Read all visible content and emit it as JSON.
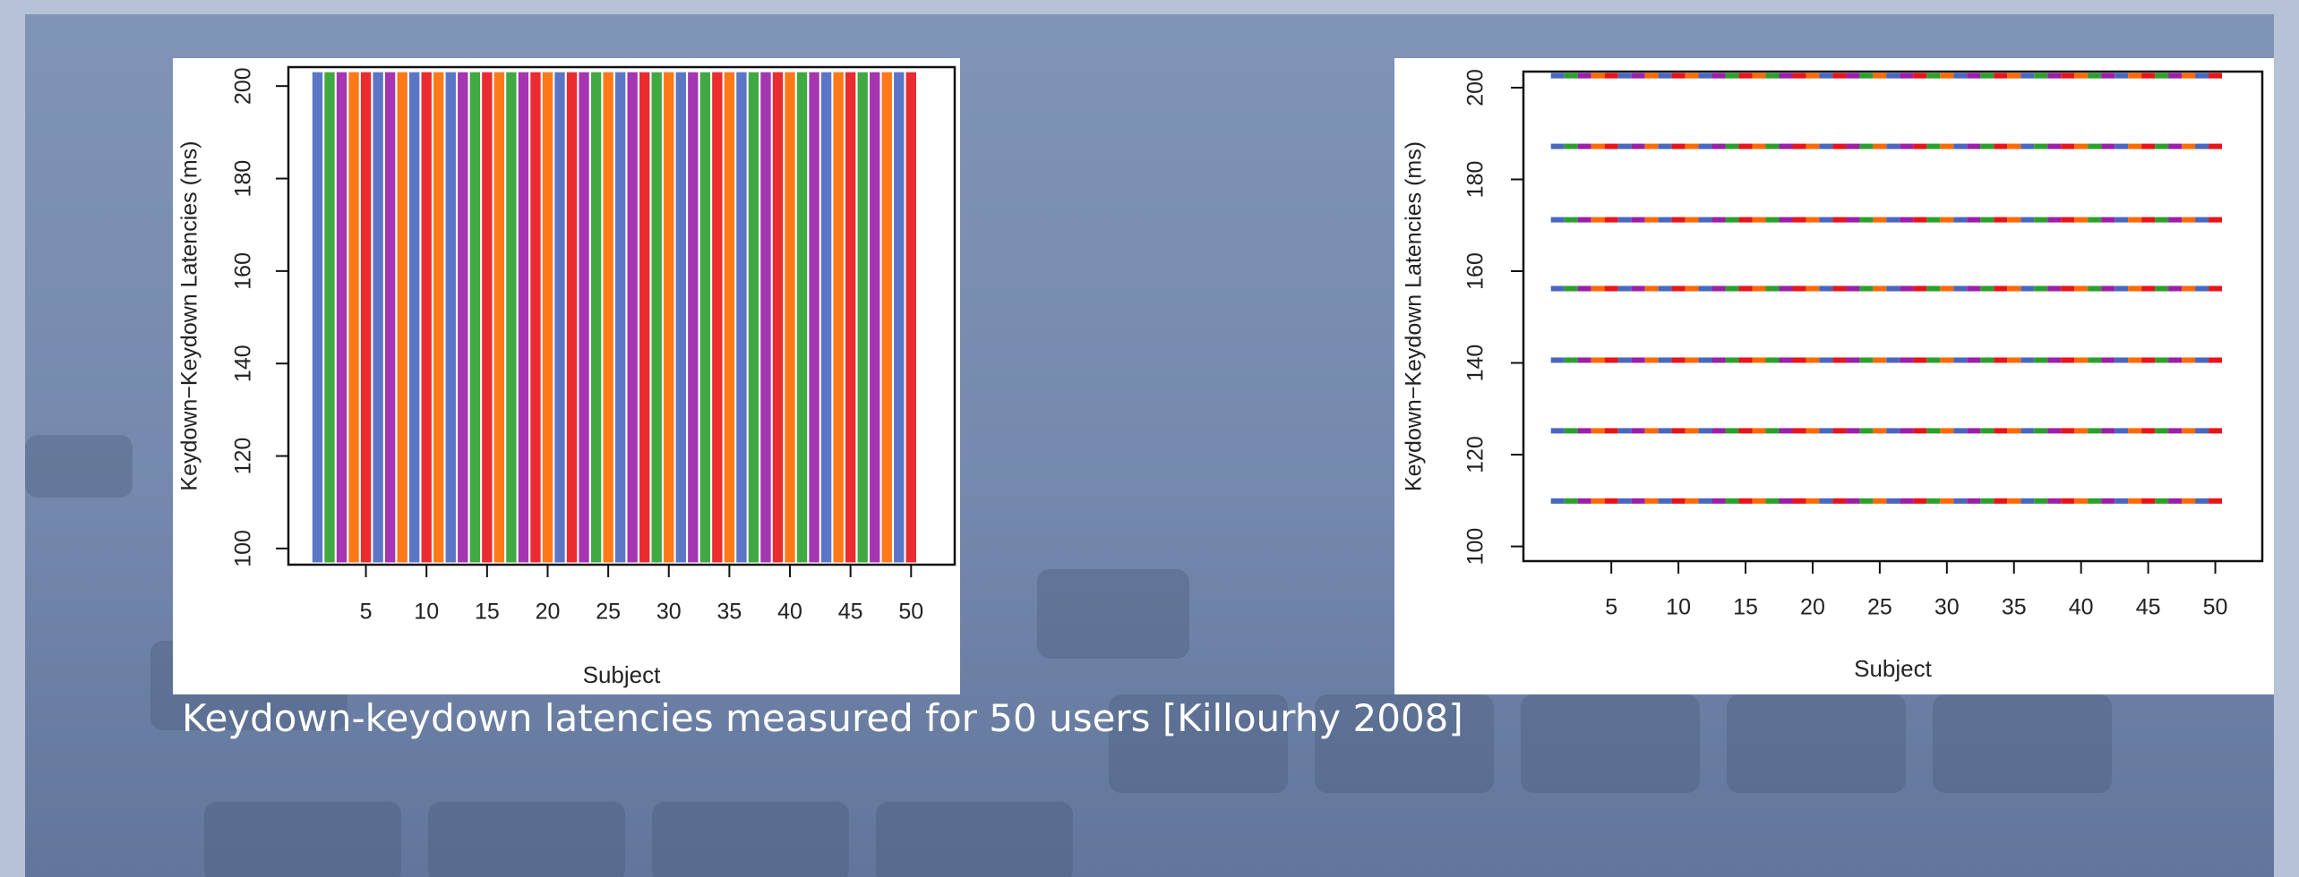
{
  "caption": "Keydown-keydown latencies measured for 50 users [Killourhy 2008]",
  "chart_data": [
    {
      "type": "strip",
      "y_label": "Keydown−Keydown Latencies (ms)",
      "x_label": "Subject",
      "x": [
        1,
        2,
        3,
        4,
        5,
        6,
        7,
        8,
        9,
        10,
        11,
        12,
        13,
        14,
        15,
        16,
        17,
        18,
        19,
        20,
        21,
        22,
        23,
        24,
        25,
        26,
        27,
        28,
        29,
        30,
        31,
        32,
        33,
        34,
        35,
        36,
        37,
        38,
        39,
        40,
        41,
        42,
        43,
        44,
        45,
        46,
        47,
        48,
        49,
        50
      ],
      "lows": [
        97,
        97,
        97,
        97,
        97,
        97,
        97,
        97,
        97,
        97,
        97,
        97,
        97,
        97,
        97,
        97,
        97,
        97,
        97,
        97,
        97,
        97,
        97,
        97,
        97,
        97,
        97,
        97,
        97,
        97,
        97,
        97,
        97,
        97,
        97,
        97,
        97,
        97,
        97,
        97,
        97,
        97,
        97,
        97,
        97,
        97,
        97,
        97,
        97,
        97
      ],
      "highs": [
        203,
        203,
        203,
        203,
        203,
        203,
        203,
        203,
        203,
        203,
        203,
        203,
        203,
        203,
        203,
        203,
        203,
        203,
        203,
        203,
        203,
        203,
        203,
        203,
        203,
        203,
        203,
        203,
        203,
        203,
        203,
        203,
        203,
        203,
        203,
        203,
        203,
        203,
        203,
        203,
        203,
        203,
        203,
        203,
        203,
        203,
        203,
        203,
        203,
        203
      ],
      "colors": [
        "#4a67c0",
        "#2ca02c",
        "#9b1fa8",
        "#ff6a00",
        "#e8141a",
        "#4a67c0",
        "#9b1fa8",
        "#ff6a00",
        "#4a67c0",
        "#e8141a",
        "#ff6a00",
        "#4a67c0",
        "#9b1fa8",
        "#2ca02c",
        "#e8141a",
        "#ff6a00",
        "#2ca02c",
        "#9b1fa8",
        "#e8141a",
        "#ff6a00",
        "#4a67c0",
        "#e8141a",
        "#9b1fa8",
        "#2ca02c",
        "#ff6a00",
        "#4a67c0",
        "#9b1fa8",
        "#e8141a",
        "#2ca02c",
        "#ff6a00",
        "#4a67c0",
        "#9b1fa8",
        "#2ca02c",
        "#e8141a",
        "#ff6a00",
        "#4a67c0",
        "#2ca02c",
        "#9b1fa8",
        "#e8141a",
        "#ff6a00",
        "#2ca02c",
        "#9b1fa8",
        "#4a67c0",
        "#ff6a00",
        "#e8141a",
        "#2ca02c",
        "#9b1fa8",
        "#ff6a00",
        "#4a67c0",
        "#e8141a"
      ],
      "xlim": [
        -1.4,
        53.6
      ],
      "ylim": [
        96.5,
        204.1
      ],
      "xticks": [
        5,
        10,
        15,
        20,
        25,
        30,
        35,
        40,
        45,
        50
      ],
      "yticks": [
        100,
        120,
        140,
        160,
        180,
        200
      ]
    },
    {
      "type": "levels",
      "y_label": "Keydown−Keydown Latencies (ms)",
      "x_label": "Subject",
      "x": [
        1,
        2,
        3,
        4,
        5,
        6,
        7,
        8,
        9,
        10,
        11,
        12,
        13,
        14,
        15,
        16,
        17,
        18,
        19,
        20,
        21,
        22,
        23,
        24,
        25,
        26,
        27,
        28,
        29,
        30,
        31,
        32,
        33,
        34,
        35,
        36,
        37,
        38,
        39,
        40,
        41,
        42,
        43,
        44,
        45,
        46,
        47,
        48,
        49,
        50
      ],
      "levels": [
        109.9,
        125.2,
        140.6,
        156.2,
        171.2,
        187.2,
        202.6
      ],
      "colors": [
        "#4a67c0",
        "#2ca02c",
        "#9b1fa8",
        "#ff6a00",
        "#e8141a",
        "#4a67c0",
        "#9b1fa8",
        "#ff6a00",
        "#4a67c0",
        "#e8141a",
        "#ff6a00",
        "#4a67c0",
        "#9b1fa8",
        "#2ca02c",
        "#e8141a",
        "#ff6a00",
        "#2ca02c",
        "#9b1fa8",
        "#e8141a",
        "#ff6a00",
        "#4a67c0",
        "#e8141a",
        "#9b1fa8",
        "#2ca02c",
        "#ff6a00",
        "#4a67c0",
        "#9b1fa8",
        "#e8141a",
        "#2ca02c",
        "#ff6a00",
        "#4a67c0",
        "#9b1fa8",
        "#2ca02c",
        "#e8141a",
        "#ff6a00",
        "#4a67c0",
        "#2ca02c",
        "#9b1fa8",
        "#e8141a",
        "#ff6a00",
        "#2ca02c",
        "#9b1fa8",
        "#4a67c0",
        "#ff6a00",
        "#e8141a",
        "#2ca02c",
        "#9b1fa8",
        "#ff6a00",
        "#4a67c0",
        "#e8141a"
      ],
      "xlim": [
        -1.55,
        53.5
      ],
      "ylim": [
        96.8,
        203.5
      ],
      "xticks": [
        5,
        10,
        15,
        20,
        25,
        30,
        35,
        40,
        45,
        50
      ],
      "yticks": [
        100,
        120,
        140,
        160,
        180,
        200
      ]
    }
  ]
}
